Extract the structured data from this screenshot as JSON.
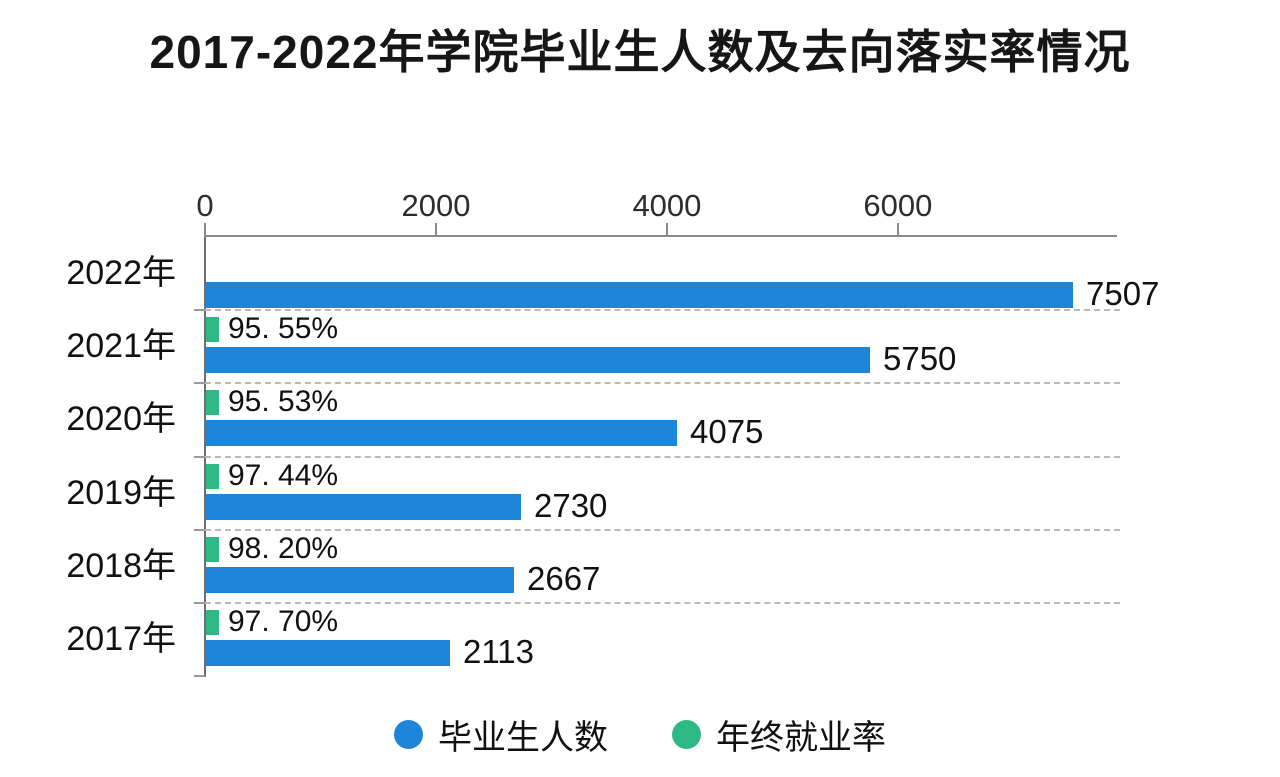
{
  "chart_data": {
    "type": "bar",
    "orientation": "horizontal",
    "title": "2017-2022年学院毕业生人数及去向落实率情况",
    "categories": [
      "2022年",
      "2021年",
      "2020年",
      "2019年",
      "2018年",
      "2017年"
    ],
    "series": [
      {
        "name": "毕业生人数",
        "color": "#1e86d8",
        "values": [
          7507,
          5750,
          4075,
          2730,
          2667,
          2113
        ]
      },
      {
        "name": "年终就业率",
        "color": "#2eb984",
        "values_percent": [
          null,
          95.55,
          95.53,
          97.44,
          98.2,
          97.7
        ],
        "labels": [
          "",
          "95. 55%",
          "95. 53%",
          "97. 44%",
          "98. 20%",
          "97. 70%"
        ]
      }
    ],
    "x_axis": {
      "position": "top",
      "ticks": [
        0,
        2000,
        4000,
        6000
      ],
      "tick_labels": [
        "0",
        "2000",
        "4000",
        "6000"
      ],
      "max": 7880
    },
    "grid": "dashed-horizontal-between-rows",
    "legend_position": "bottom"
  },
  "colors": {
    "graduates_bar": "#1e86d8",
    "rate_bar": "#2eb984",
    "axis_line": "#8a8a8a",
    "gridline": "#b9b9b9",
    "text": "#111111",
    "background": "#ffffff"
  }
}
